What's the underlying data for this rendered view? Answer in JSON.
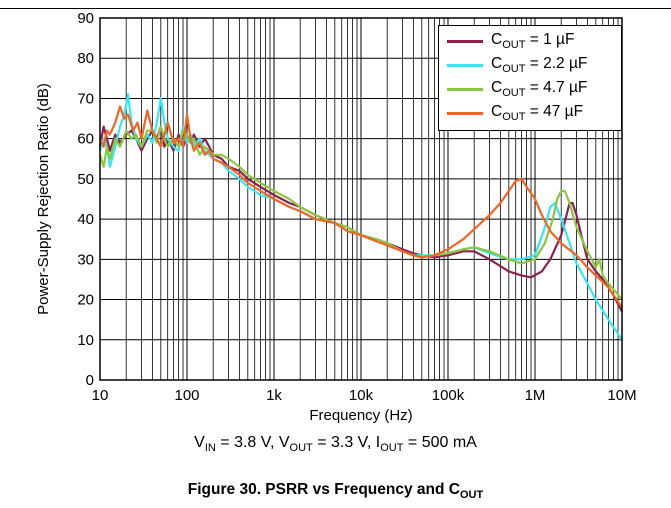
{
  "chart_data": {
    "type": "line",
    "x_scale": "log",
    "xlabel": "Frequency (Hz)",
    "ylabel": "Power-Supply Rejection Ratio (dB)",
    "xlim": [
      10,
      10000000
    ],
    "ylim": [
      0,
      90
    ],
    "x_ticks": [
      "10",
      "100",
      "1k",
      "10k",
      "100k",
      "1M",
      "10M"
    ],
    "y_ticks": [
      "0",
      "10",
      "20",
      "30",
      "40",
      "50",
      "60",
      "70",
      "80",
      "90"
    ],
    "grid": true,
    "legend_position": "top-right",
    "series": [
      {
        "name": "C_OUT = 1 µF",
        "label_main": "C",
        "label_sub": "OUT",
        "label_rest": " = 1 µF",
        "color": "#8B2252",
        "x": [
          10,
          11,
          12,
          13,
          15,
          17,
          20,
          23,
          26,
          30,
          35,
          40,
          45,
          50,
          55,
          60,
          70,
          80,
          90,
          100,
          110,
          120,
          140,
          160,
          180,
          200,
          250,
          300,
          400,
          500,
          700,
          1000,
          1500,
          2000,
          3000,
          5000,
          7000,
          10000,
          15000,
          20000,
          30000,
          40000,
          50000,
          70000,
          100000,
          150000,
          200000,
          300000,
          500000,
          700000,
          900000,
          1200000,
          1500000,
          2000000,
          2300000,
          2500000,
          2700000,
          3000000,
          3500000,
          4000000,
          5000000,
          6000000,
          7000000,
          8000000,
          10000000
        ],
        "y": [
          58,
          63,
          60,
          57,
          61,
          59,
          61,
          62,
          60,
          57,
          60,
          62,
          60,
          63,
          58,
          60,
          57,
          61,
          58,
          60,
          59,
          61,
          58,
          60,
          58,
          56,
          55,
          53,
          52,
          50,
          48,
          46,
          44,
          43,
          41,
          39,
          38,
          36,
          35,
          34,
          32.5,
          31.5,
          31,
          30.5,
          31,
          32,
          32,
          30,
          27,
          26,
          25.5,
          27,
          30,
          36,
          41,
          44,
          44,
          41,
          35,
          30,
          27,
          25,
          23,
          21,
          17
        ]
      },
      {
        "name": "C_OUT = 2.2 µF",
        "label_main": "C",
        "label_sub": "OUT",
        "label_rest": " = 2.2 µF",
        "color": "#33E8F5",
        "x": [
          10,
          11,
          12,
          13,
          15,
          17,
          19,
          21,
          23,
          26,
          30,
          35,
          40,
          45,
          50,
          55,
          60,
          70,
          80,
          90,
          100,
          110,
          120,
          140,
          160,
          180,
          200,
          250,
          300,
          400,
          500,
          700,
          1000,
          1500,
          2000,
          3000,
          5000,
          7000,
          10000,
          15000,
          20000,
          30000,
          40000,
          50000,
          70000,
          100000,
          150000,
          200000,
          300000,
          500000,
          700000,
          1000000,
          1300000,
          1500000,
          1700000,
          2000000,
          2500000,
          3000000,
          4000000,
          5000000,
          7000000,
          10000000
        ],
        "y": [
          57,
          60,
          58,
          53,
          58,
          63,
          66,
          71,
          64,
          60,
          58,
          61,
          59,
          64,
          70,
          64,
          60,
          58,
          57,
          63,
          59,
          61,
          58,
          60,
          57,
          56,
          55,
          54,
          52,
          50,
          48,
          46,
          45,
          43,
          42,
          40,
          39,
          37,
          36,
          35,
          34,
          32,
          31,
          31,
          31,
          31.5,
          32.5,
          33,
          31.5,
          30,
          30,
          31,
          38,
          43,
          44,
          40,
          34,
          29,
          24,
          20,
          15,
          10
        ]
      },
      {
        "name": "C_OUT = 4.7 µF",
        "label_main": "C",
        "label_sub": "OUT",
        "label_rest": " = 4.7 µF",
        "color": "#8DC63F",
        "x": [
          10,
          11,
          12,
          13,
          15,
          17,
          20,
          23,
          26,
          30,
          35,
          40,
          45,
          50,
          55,
          60,
          70,
          80,
          90,
          100,
          110,
          120,
          140,
          160,
          180,
          200,
          250,
          300,
          400,
          500,
          700,
          1000,
          1500,
          2000,
          3000,
          5000,
          7000,
          10000,
          15000,
          20000,
          30000,
          40000,
          50000,
          70000,
          100000,
          150000,
          200000,
          300000,
          500000,
          700000,
          1000000,
          1300000,
          1600000,
          1800000,
          2000000,
          2200000,
          2500000,
          3000000,
          4000000,
          5000000,
          5500000,
          6000000,
          7000000,
          10000000
        ],
        "y": [
          56,
          53,
          58,
          55,
          60,
          58,
          62,
          60,
          61,
          58,
          62,
          62,
          59,
          63,
          60,
          58,
          60,
          58,
          62,
          61,
          59,
          60,
          56,
          58,
          57,
          56,
          56,
          55,
          53,
          51,
          49,
          47,
          45,
          43,
          41,
          39,
          38,
          36,
          35,
          34,
          32,
          31,
          30.5,
          31,
          31.5,
          32.5,
          33,
          32,
          30,
          29,
          30,
          34,
          40,
          45,
          47,
          47,
          44,
          38,
          32,
          28,
          30,
          26,
          24,
          20
        ]
      },
      {
        "name": "C_OUT = 47 µF",
        "label_main": "C",
        "label_sub": "OUT",
        "label_rest": " = 47 µF",
        "color": "#F26522",
        "x": [
          10,
          11,
          12,
          13,
          15,
          17,
          19,
          21,
          24,
          27,
          30,
          35,
          40,
          45,
          50,
          55,
          60,
          70,
          80,
          90,
          100,
          110,
          120,
          140,
          160,
          180,
          200,
          250,
          300,
          400,
          500,
          700,
          1000,
          1500,
          2000,
          3000,
          5000,
          7000,
          10000,
          15000,
          20000,
          30000,
          40000,
          50000,
          70000,
          100000,
          150000,
          200000,
          300000,
          400000,
          500000,
          600000,
          700000,
          800000,
          1000000,
          1200000,
          1500000,
          2000000,
          3000000,
          4000000,
          5000000,
          7000000,
          10000000
        ],
        "y": [
          60,
          58,
          62,
          61,
          64,
          68,
          65,
          66,
          62,
          64,
          60,
          67,
          62,
          60,
          58,
          61,
          64,
          59,
          60,
          58,
          66,
          60,
          57,
          59,
          56,
          57,
          55,
          54,
          53,
          51,
          49,
          47,
          45,
          43,
          42,
          40,
          39,
          37,
          36,
          34.5,
          33.5,
          32,
          31,
          30.5,
          31,
          32.5,
          35,
          37.5,
          41,
          44,
          47,
          49.5,
          50,
          48,
          45,
          41,
          37,
          34,
          31,
          28,
          26,
          23,
          18
        ]
      }
    ]
  },
  "footer": {
    "cond_vin": "V",
    "cond_vin_sub": "IN",
    "cond_vin_val": " = 3.8 V, ",
    "cond_vout": "V",
    "cond_vout_sub": "OUT",
    "cond_vout_val": " = 3.3 V, ",
    "cond_iout": "I",
    "cond_iout_sub": "OUT",
    "cond_iout_val": " = 500 mA",
    "caption_main": "Figure 30. PSRR vs Frequency and C",
    "caption_sub": "OUT"
  }
}
